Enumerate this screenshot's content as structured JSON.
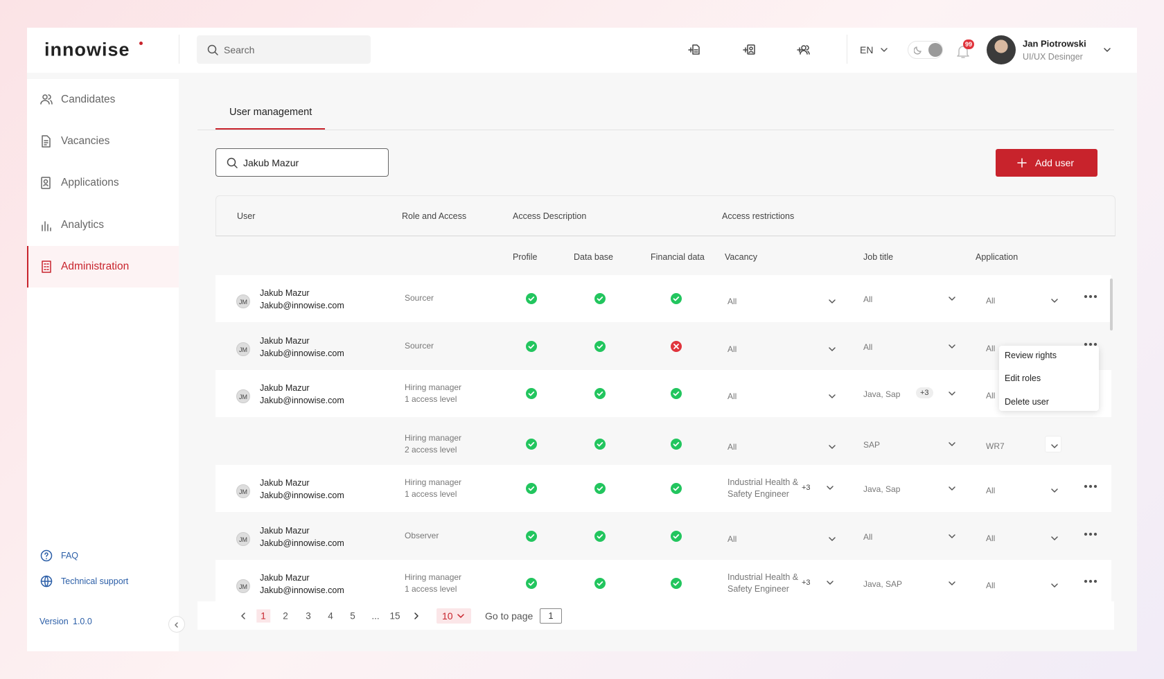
{
  "header": {
    "logo": "innowise",
    "search_placeholder": "Search",
    "language": "EN",
    "notifications": "99",
    "user_name": "Jan Piotrowski",
    "user_role": "UI/UX Desinger"
  },
  "sidebar": {
    "nav": [
      "Candidates",
      "Vacancies",
      "Applications",
      "Analytics",
      "Administration"
    ],
    "active": 4,
    "links": [
      "FAQ",
      "Technical support"
    ],
    "version_label": "Version",
    "version": "1.0.0"
  },
  "tabs": [
    "User management"
  ],
  "search_value": "Jakub Mazur",
  "add_button": "Add user",
  "table": {
    "group_headers": [
      "User",
      "Role and Access",
      "Access Description",
      "Access restrictions"
    ],
    "sub_headers": [
      "Profile",
      "Data base",
      "Financial data",
      "Vacancy",
      "Job title",
      "Application"
    ],
    "rows": [
      {
        "initials": "JM",
        "name": "Jakub Mazur",
        "email": "Jakub@innowise.com",
        "role": "Sourcer",
        "profile": true,
        "database": true,
        "financial": true,
        "vacancy": "All",
        "job_title": "All",
        "application": "All",
        "menu": true
      },
      {
        "initials": "JM",
        "name": "Jakub Mazur",
        "email": "Jakub@innowise.com",
        "role": "Sourcer",
        "profile": true,
        "database": true,
        "financial": false,
        "vacancy": "All",
        "job_title": "All",
        "application": "All",
        "menu": true
      },
      {
        "initials": "JM",
        "name": "Jakub Mazur",
        "email": "Jakub@innowise.com",
        "role": "Hiring manager",
        "role_detail": "1 access level",
        "profile": true,
        "database": true,
        "financial": true,
        "vacancy": "All",
        "job_title": "Java, Sap",
        "job_title_more": "+3",
        "application": "All",
        "menu": false
      },
      {
        "role": "Hiring manager",
        "role_detail": "2 access level",
        "profile": true,
        "database": true,
        "financial": true,
        "vacancy": "All",
        "job_title": "SAP",
        "application": "WR7",
        "menu": false
      },
      {
        "initials": "JM",
        "name": "Jakub Mazur",
        "email": "Jakub@innowise.com",
        "role": "Hiring manager",
        "role_detail": "1 access level",
        "profile": true,
        "database": true,
        "financial": true,
        "vacancy": "Industrial Health & Safety Engineer",
        "vacancy_more": "+3",
        "job_title": "Java, Sap",
        "application": "All",
        "menu": true
      },
      {
        "initials": "JM",
        "name": "Jakub Mazur",
        "email": "Jakub@innowise.com",
        "role": "Observer",
        "profile": true,
        "database": true,
        "financial": true,
        "vacancy": "All",
        "job_title": "All",
        "application": "All",
        "menu": true
      },
      {
        "initials": "JM",
        "name": "Jakub Mazur",
        "email": "Jakub@innowise.com",
        "role": "Hiring manager",
        "role_detail": "1 access level",
        "profile": true,
        "database": true,
        "financial": true,
        "vacancy": "Industrial Health & Safety Engineer",
        "vacancy_more": "+3",
        "job_title": "Java, SAP",
        "application": "All",
        "menu": true
      }
    ]
  },
  "context_menu": [
    "Review rights",
    "Edit roles",
    "Delete user"
  ],
  "pagination": {
    "current": 1,
    "pages": [
      1,
      2,
      3,
      4,
      5,
      "...",
      15
    ],
    "page_size": 10,
    "goto_label": "Go to page",
    "goto_value": 1
  }
}
